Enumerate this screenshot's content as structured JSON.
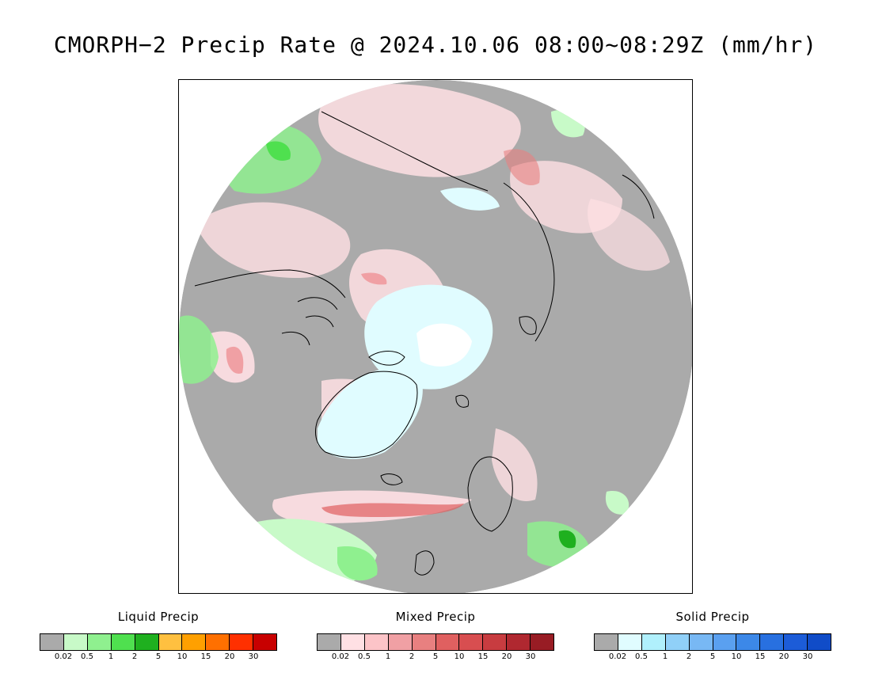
{
  "title": "CMORPH−2 Precip Rate @ 2024.10.06 08:00~08:29Z (mm/hr)",
  "map": {
    "projection": "north polar stereographic",
    "colors": {
      "background": "#aaaaaa",
      "land_outline": "#000000",
      "no_data": "#ffffff"
    }
  },
  "legends": [
    {
      "name": "liquid",
      "title": "Liquid Precip",
      "ticks": [
        "0.02",
        "0.5",
        "1",
        "2",
        "5",
        "10",
        "15",
        "20",
        "30"
      ],
      "colors": [
        "#aaaaaa",
        "#c8fac8",
        "#8ff08f",
        "#4fe04f",
        "#1fb01f",
        "#ffc040",
        "#ffa000",
        "#ff7000",
        "#ff3000",
        "#c80000"
      ]
    },
    {
      "name": "mixed",
      "title": "Mixed Precip",
      "ticks": [
        "0.02",
        "0.5",
        "1",
        "2",
        "5",
        "10",
        "15",
        "20",
        "30"
      ],
      "colors": [
        "#aaaaaa",
        "#ffe0e4",
        "#fcc4c8",
        "#f0a0a4",
        "#e88080",
        "#e06060",
        "#d84e50",
        "#c83c40",
        "#b02830",
        "#981c24"
      ]
    },
    {
      "name": "solid",
      "title": "Solid Precip",
      "ticks": [
        "0.02",
        "0.5",
        "1",
        "2",
        "5",
        "10",
        "15",
        "20",
        "30"
      ],
      "colors": [
        "#aaaaaa",
        "#e0fcff",
        "#b0f0fc",
        "#90d0f8",
        "#78b8f4",
        "#5aa0f0",
        "#3c88e8",
        "#2870e0",
        "#1c5cd8",
        "#104cc8"
      ]
    }
  ]
}
